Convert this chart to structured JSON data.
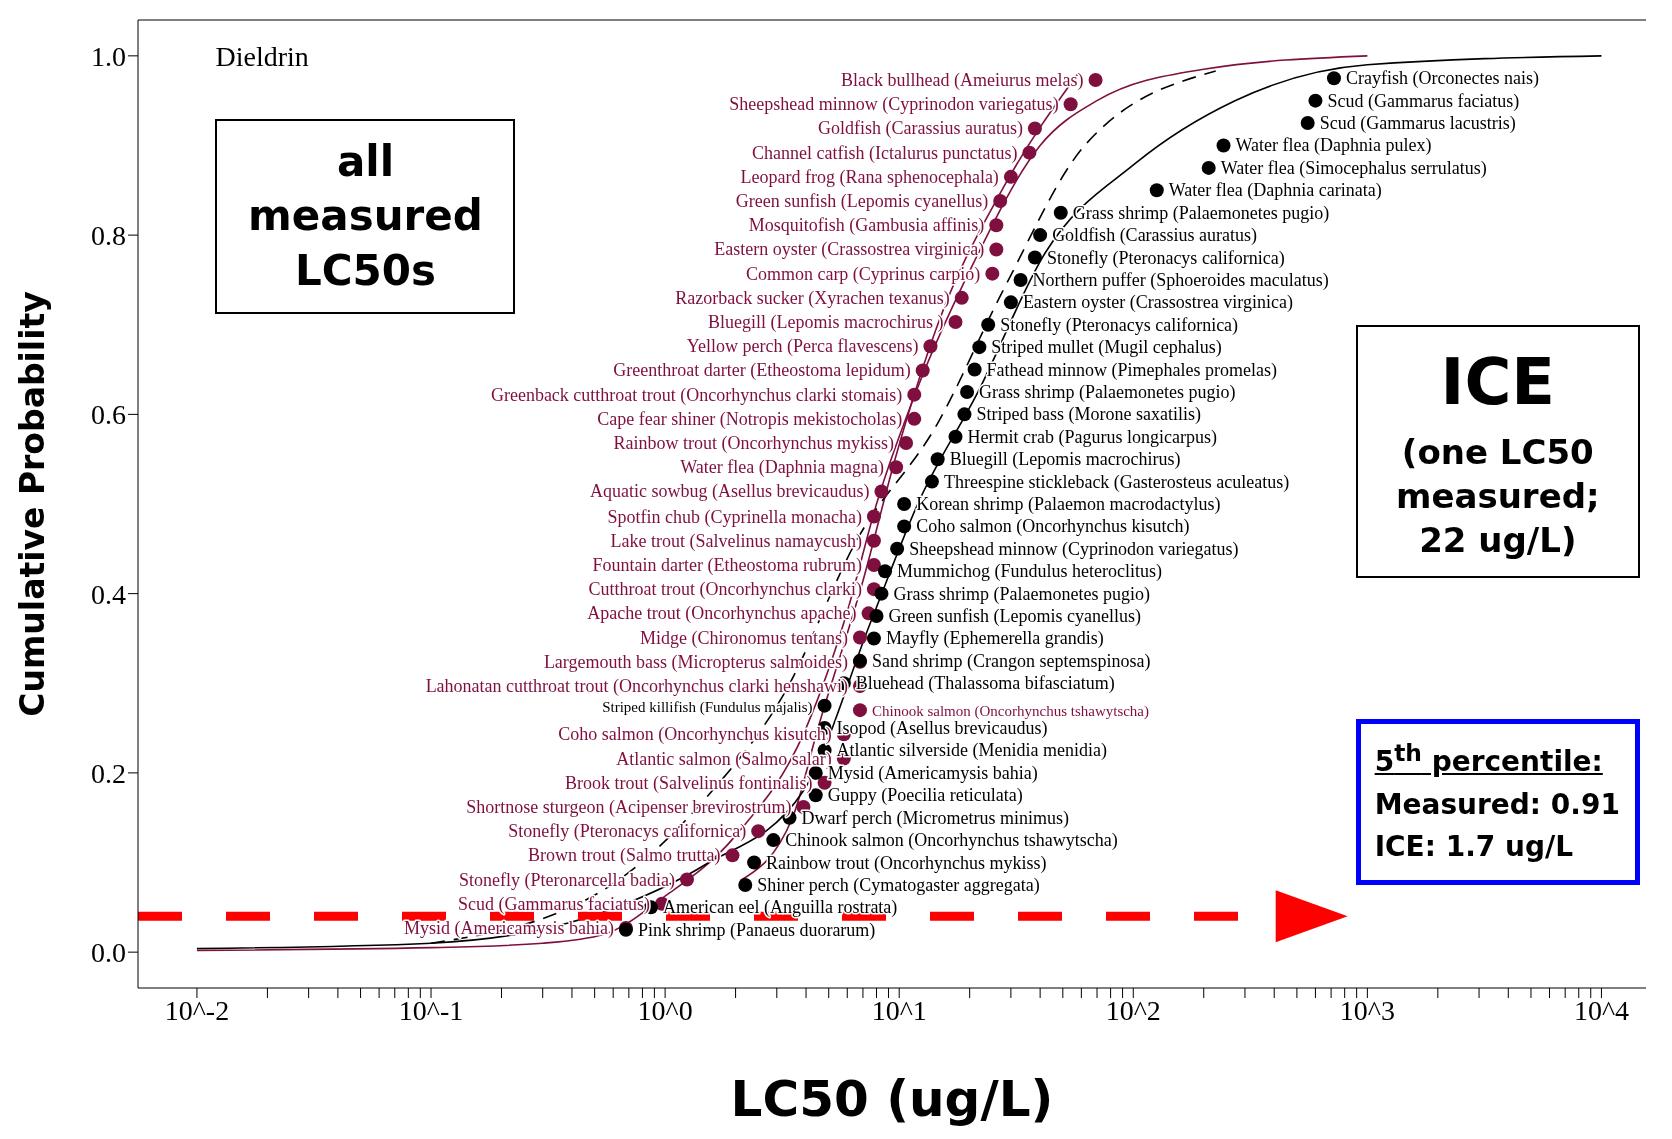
{
  "chart_data": {
    "type": "scatter",
    "title": "Dieldrin",
    "xlabel": "LC50 (ug/L)",
    "ylabel": "Cumulative Probability",
    "log": "x",
    "marker": "circle",
    "grid": false,
    "legend": false,
    "xlim": [
      0.0056,
      15500
    ],
    "ylim": [
      -0.04,
      1.04
    ],
    "xticks": [
      {
        "value": 0.01,
        "label": "10^-2"
      },
      {
        "value": 0.02,
        "label": null
      },
      {
        "value": 0.03,
        "label": null
      },
      {
        "value": 0.04,
        "label": null
      },
      {
        "value": 0.05,
        "label": null
      },
      {
        "value": 0.06,
        "label": null
      },
      {
        "value": 0.07,
        "label": null
      },
      {
        "value": 0.08,
        "label": null
      },
      {
        "value": 0.09,
        "label": null
      },
      {
        "value": 0.1,
        "label": "10^-1"
      },
      {
        "value": 0.2,
        "label": null
      },
      {
        "value": 0.3,
        "label": null
      },
      {
        "value": 0.4,
        "label": null
      },
      {
        "value": 0.5,
        "label": null
      },
      {
        "value": 0.6,
        "label": null
      },
      {
        "value": 0.7,
        "label": null
      },
      {
        "value": 0.8,
        "label": null
      },
      {
        "value": 0.9,
        "label": null
      },
      {
        "value": 1,
        "label": "10^0"
      },
      {
        "value": 2,
        "label": null
      },
      {
        "value": 3,
        "label": null
      },
      {
        "value": 4,
        "label": null
      },
      {
        "value": 5,
        "label": null
      },
      {
        "value": 6,
        "label": null
      },
      {
        "value": 7,
        "label": null
      },
      {
        "value": 8,
        "label": null
      },
      {
        "value": 9,
        "label": null
      },
      {
        "value": 10,
        "label": "10^1"
      },
      {
        "value": 20,
        "label": null
      },
      {
        "value": 30,
        "label": null
      },
      {
        "value": 40,
        "label": null
      },
      {
        "value": 50,
        "label": null
      },
      {
        "value": 60,
        "label": null
      },
      {
        "value": 70,
        "label": null
      },
      {
        "value": 80,
        "label": null
      },
      {
        "value": 90,
        "label": null
      },
      {
        "value": 100,
        "label": "10^2"
      },
      {
        "value": 200,
        "label": null
      },
      {
        "value": 300,
        "label": null
      },
      {
        "value": 400,
        "label": null
      },
      {
        "value": 500,
        "label": null
      },
      {
        "value": 600,
        "label": null
      },
      {
        "value": 700,
        "label": null
      },
      {
        "value": 800,
        "label": null
      },
      {
        "value": 900,
        "label": null
      },
      {
        "value": 1000,
        "label": "10^3"
      },
      {
        "value": 2000,
        "label": null
      },
      {
        "value": 3000,
        "label": null
      },
      {
        "value": 4000,
        "label": null
      },
      {
        "value": 5000,
        "label": null
      },
      {
        "value": 6000,
        "label": null
      },
      {
        "value": 7000,
        "label": null
      },
      {
        "value": 8000,
        "label": null
      },
      {
        "value": 9000,
        "label": null
      },
      {
        "value": 10000,
        "label": "10^4"
      }
    ],
    "yticks": [
      {
        "value": 0,
        "label": "0.0"
      },
      0.2,
      0.4,
      0.6,
      0.8,
      {
        "value": 1,
        "label": "1.0"
      }
    ],
    "ref_lines": [
      {
        "axis": "y",
        "value": 0.04,
        "color": "#ff0000",
        "line_style": "dashed"
      }
    ],
    "annotations": [
      "all measured LC50s",
      "ICE",
      "(one LC50 measured; 22 ug/L)",
      "5$^{th}$ percentile:",
      "Measured: 0.91",
      "ICE: 1.7 ug/L"
    ],
    "series": [
      {
        "type": "scatter",
        "color": "#7f0f3f",
        "x": [
          0.68,
          0.97,
          1.24,
          1.94,
          2.5,
          3.9,
          4.8,
          5.8,
          5.8,
          6.8,
          6.8,
          6.8,
          6.8,
          7.4,
          7.8,
          7.8,
          7.8,
          7.8,
          8.4,
          9.7,
          10.7,
          11.6,
          11.6,
          12.6,
          13.6,
          17.4,
          18.5,
          25,
          26,
          26,
          27,
          30,
          36,
          38,
          54,
          69
        ],
        "values": [
          0.027,
          0.054,
          0.081,
          0.108,
          0.135,
          0.162,
          0.189,
          0.216,
          0.243,
          0.27,
          0.297,
          0.324,
          0.351,
          0.378,
          0.405,
          0.432,
          0.459,
          0.486,
          0.514,
          0.541,
          0.568,
          0.595,
          0.622,
          0.649,
          0.676,
          0.703,
          0.73,
          0.757,
          0.784,
          0.811,
          0.838,
          0.865,
          0.892,
          0.919,
          0.946,
          0.973
        ],
        "value_labels": [
          "Mysid (Americamysis bahia)",
          "Scud (Gammarus faciatus)",
          "Stonefly (Pteronarcella badia)",
          "Brown trout (Salmo trutta)",
          "Stonefly (Pteronacys californica)",
          "Shortnose sturgeon (Acipenser brevirostrum)",
          "Brook trout (Salvelinus fontinalis)",
          "Atlantic salmon (Salmo salar)",
          "Coho salmon (Oncorhynchus kisutch)",
          "Chinook salmon (Oncorhynchus tshawytscha)",
          "Lahonatan cutthroat trout (Oncorhynchus clarki henshawi)",
          "Largemouth bass (Micropterus salmoides)",
          "Midge (Chironomus tentans)",
          "Apache trout (Oncorhynchus apache)",
          "Cutthroat trout (Oncorhynchus clarki)",
          "Fountain darter (Etheostoma rubrum)",
          "Lake trout (Salvelinus namaycush)",
          "Spotfin chub (Cyprinella monacha)",
          "Aquatic sowbug (Asellus brevicaudus)",
          "Water flea (Daphnia magna)",
          "Rainbow trout (Oncorhynchus mykiss)",
          "Cape fear shiner (Notropis mekistocholas)",
          "Greenback cutthroat trout (Oncorhynchus clarki stomais)",
          "Greenthroat darter (Etheostoma lepidum)",
          "Yellow perch (Perca flavescens)",
          "Bluegill (Lepomis macrochirus )",
          "Razorback sucker (Xyrachen texanus)",
          "Common carp (Cyprinus carpio)",
          "Eastern oyster (Crassostrea virginica)",
          "Mosquitofish (Gambusia affinis)",
          "Green sunfish (Lepomis cyanellus)",
          "Leopard frog (Rana sphenocephala)",
          "Channel catfish (Ictalurus punctatus)",
          "Goldfish (Carassius auratus)",
          "Sheepshead minnow (Cyprinodon variegatus)",
          "Black bullhead (Ameiurus melas)"
        ]
      },
      {
        "type": "scatter",
        "color": "#000000",
        "x": [
          0.68,
          0.87,
          2.2,
          2.4,
          2.9,
          3.4,
          4.4,
          4.4,
          4.8,
          4.8,
          4.8,
          5.8,
          6.8,
          7.8,
          8.0,
          8.4,
          8.7,
          9.8,
          10.5,
          10.5,
          13.8,
          14.6,
          17.4,
          19,
          19.5,
          21,
          22,
          24,
          30,
          33,
          38,
          40,
          49,
          126,
          210,
          243,
          556,
          600,
          720
        ],
        "values": [
          0.025,
          0.05,
          0.075,
          0.1,
          0.125,
          0.15,
          0.175,
          0.2,
          0.225,
          0.25,
          0.275,
          0.3,
          0.325,
          0.35,
          0.375,
          0.4,
          0.425,
          0.45,
          0.475,
          0.5,
          0.525,
          0.55,
          0.575,
          0.6,
          0.625,
          0.65,
          0.675,
          0.7,
          0.725,
          0.75,
          0.775,
          0.8,
          0.825,
          0.85,
          0.875,
          0.9,
          0.925,
          0.95,
          0.975
        ],
        "value_labels": [
          "Pink shrimp (Panaeus duorarum)",
          "American eel (Anguilla rostrata)",
          "Shiner perch (Cymatogaster aggregata)",
          "Rainbow trout (Oncorhynchus mykiss)",
          "Chinook salmon (Oncorhynchus tshawytscha)",
          "Dwarf perch (Micrometrus minimus)",
          "Guppy (Poecilia reticulata)",
          "Mysid (Americamysis bahia)",
          "Atlantic silverside (Menidia menidia)",
          "Isopod (Asellus brevicaudus)",
          "Striped killifish (Fundulus majalis)",
          "Bluehead (Thalassoma bifasciatum)",
          "Sand shrimp (Crangon septemspinosa)",
          "Mayfly (Ephemerella grandis)",
          "Green sunfish (Lepomis cyanellus)",
          "Grass shrimp (Palaemonetes pugio)",
          "Mummichog (Fundulus heteroclitus)",
          "Sheepshead minnow (Cyprinodon variegatus)",
          "Coho salmon (Oncorhynchus kisutch)",
          "Korean shrimp (Palaemon macrodactylus)",
          "Threespine stickleback (Gasterosteus aculeatus)",
          "Bluegill (Lepomis macrochirus)",
          "Hermit crab (Pagurus longicarpus)",
          "Striped bass (Morone saxatilis)",
          "Grass shrimp (Palaemonetes pugio)",
          "Fathead minnow (Pimephales promelas)",
          "Striped mullet (Mugil cephalus)",
          "Stonefly (Pteronacys californica)",
          "Eastern oyster (Crassostrea virginica)",
          "Northern puffer (Sphoeroides maculatus)",
          "Stonefly (Pteronacys californica)",
          "Goldfish (Carassius auratus)",
          "Grass shrimp (Palaemonetes pugio)",
          "Water flea (Daphnia carinata)",
          "Water flea (Simocephalus serrulatus)",
          "Water flea (Daphnia pulex)",
          "Scud (Gammarus lacustris)",
          "Scud (Gammarus faciatus)",
          "Crayfish (Orconectes nais)"
        ]
      },
      {
        "type": "line",
        "color": "#7f0f3f",
        "marker": "none",
        "line_style": "solid",
        "x": [
          0.01,
          0.1,
          0.3,
          0.55,
          0.97,
          2,
          4,
          6,
          8,
          12,
          20,
          40,
          70,
          200,
          1000
        ],
        "values": [
          0.002,
          0.005,
          0.01,
          0.02,
          0.06,
          0.13,
          0.25,
          0.38,
          0.5,
          0.63,
          0.76,
          0.9,
          0.95,
          0.985,
          1.0
        ]
      },
      {
        "type": "line",
        "color": "#7f0f3f",
        "marker": "none",
        "line_style": "solid",
        "x": [
          2.1,
          3.5,
          4.5,
          7.1,
          9.6,
          14.6,
          28,
          58
        ],
        "values": [
          0.08,
          0.15,
          0.25,
          0.42,
          0.55,
          0.7,
          0.854,
          0.98
        ]
      },
      {
        "type": "line",
        "color": "#000000",
        "marker": "none",
        "line_style": "dashed",
        "x": [
          0.1,
          0.55,
          1.47,
          3.25,
          6.6,
          14.6,
          28,
          62,
          225
        ],
        "values": [
          0.01,
          0.07,
          0.17,
          0.29,
          0.46,
          0.59,
          0.74,
          0.9,
          0.983
        ]
      },
      {
        "type": "line",
        "color": "#000000",
        "marker": "none",
        "line_style": "solid",
        "x": [
          0.01,
          0.1,
          0.55,
          1.47,
          3.9,
          7.6,
          12,
          21.8,
          42,
          102,
          272,
          1000,
          10000
        ],
        "values": [
          0.004,
          0.01,
          0.045,
          0.097,
          0.18,
          0.37,
          0.5,
          0.626,
          0.78,
          0.88,
          0.95,
          0.99,
          1.0
        ]
      }
    ]
  }
}
